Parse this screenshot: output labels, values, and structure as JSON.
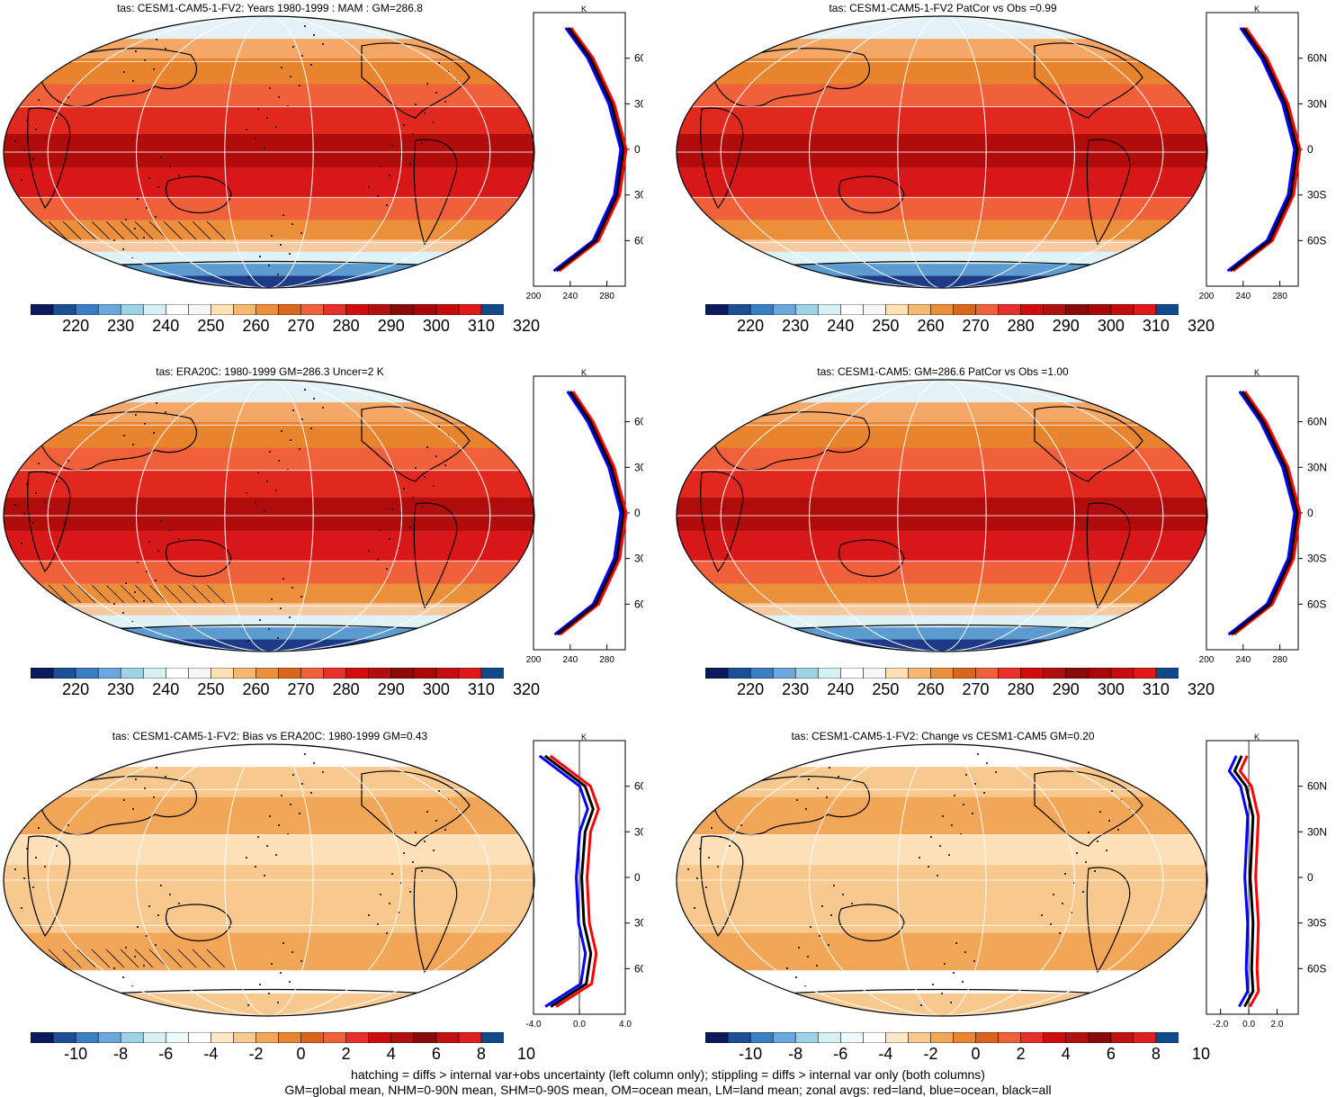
{
  "panels": [
    {
      "title": "tas: CESM1-CAM5-1-FV2: Years 1980-1999 : MAM : GM=286.8",
      "type": "abs",
      "hatch": true,
      "stipple": true
    },
    {
      "title": "tas: CESM1-CAM5-1-FV2 PatCor vs Obs =0.99",
      "type": "abs",
      "hatch": false,
      "stipple": false
    },
    {
      "title": "tas: ERA20C: 1980-1999 GM=286.3 Uncer=2 K",
      "type": "abs",
      "hatch": true,
      "stipple": true
    },
    {
      "title": "tas: CESM1-CAM5: GM=286.6 PatCor vs Obs =1.00",
      "type": "abs",
      "hatch": false,
      "stipple": false
    },
    {
      "title": "tas: CESM1-CAM5-1-FV2: Bias vs ERA20C: 1980-1999 GM=0.43",
      "type": "diff",
      "hatch": true,
      "stipple": true
    },
    {
      "title": "tas: CESM1-CAM5-1-FV2: Change vs CESM1-CAM5 GM=0.20",
      "type": "diff",
      "hatch": false,
      "stipple": true
    }
  ],
  "colorbars": {
    "abs_labels": [
      "220",
      "230",
      "240",
      "250",
      "260",
      "270",
      "280",
      "290",
      "300",
      "310",
      "320"
    ],
    "diff_labels": [
      "-10",
      "-8",
      "-6",
      "-4",
      "-2",
      "0",
      "2",
      "4",
      "6",
      "8",
      "10"
    ],
    "abs_colors": [
      "#0a1a5c",
      "#1c4f96",
      "#3a7fc4",
      "#6aa7dc",
      "#9ed2e6",
      "#d6f0f4",
      "#ffffff",
      "#f7f7f7",
      "#fde0b5",
      "#f7b76e",
      "#ec8f3a",
      "#d8661c",
      "#f0603a",
      "#e8302a",
      "#d00c0c",
      "#b01010",
      "#8a0a0a",
      "#a80808",
      "#c40c0c",
      "#e01818",
      "#104a8a"
    ],
    "diff_colors": [
      "#0a1a5c",
      "#1c4f96",
      "#3a7fc4",
      "#6aa7dc",
      "#9ed2e6",
      "#d6f0f4",
      "#eefafc",
      "#ffffff",
      "#fde9c9",
      "#f7c98e",
      "#f1a658",
      "#e9852f",
      "#d9651c",
      "#f0603a",
      "#e8302a",
      "#d00c0c",
      "#b01010",
      "#8a0a0a",
      "#c01010",
      "#e02020",
      "#104a8a"
    ]
  },
  "zonal": {
    "unit_label": "K",
    "lat_labels": [
      "60N",
      "30N",
      "0",
      "30S",
      "60S"
    ],
    "abs_x_labels": [
      "200",
      "240",
      "280"
    ],
    "diff_x_labels_left": [
      "-4.0",
      "0.0",
      "4.0"
    ],
    "diff_x_labels_right": [
      "-2.0",
      "0.0",
      "2.0"
    ],
    "legend_colors": {
      "land": "#ff0000",
      "ocean": "#0000ff",
      "all": "#000000"
    }
  },
  "chart_data": [
    {
      "type": "heatmap",
      "title": "tas: CESM1-CAM5-1-FV2: Years 1980-1999 : MAM : GM=286.8",
      "colorbar_ticks": [
        220,
        230,
        240,
        250,
        260,
        270,
        280,
        290,
        300,
        310,
        320
      ],
      "zonal_mean": {
        "lat": [
          80,
          60,
          30,
          0,
          -30,
          -60,
          -80
        ],
        "all": [
          238,
          262,
          285,
          298,
          291,
          268,
          225
        ],
        "xlim": [
          200,
          300
        ]
      }
    },
    {
      "type": "heatmap",
      "title": "tas: CESM1-CAM5-1-FV2 PatCor vs Obs =0.99",
      "colorbar_ticks": [
        220,
        230,
        240,
        250,
        260,
        270,
        280,
        290,
        300,
        310,
        320
      ],
      "zonal_mean": {
        "lat": [
          80,
          60,
          30,
          0,
          -30,
          -60,
          -80
        ],
        "all": [
          240,
          263,
          286,
          299,
          292,
          269,
          226
        ],
        "xlim": [
          200,
          300
        ]
      }
    },
    {
      "type": "heatmap",
      "title": "tas: ERA20C: 1980-1999 GM=286.3 Uncer=2 K",
      "colorbar_ticks": [
        220,
        230,
        240,
        250,
        260,
        270,
        280,
        290,
        300,
        310,
        320
      ],
      "zonal_mean": {
        "lat": [
          80,
          60,
          30,
          0,
          -30,
          -60,
          -80
        ],
        "all": [
          240,
          262,
          285,
          298,
          291,
          268,
          226
        ],
        "xlim": [
          200,
          300
        ]
      }
    },
    {
      "type": "heatmap",
      "title": "tas: CESM1-CAM5: GM=286.6 PatCor vs Obs =1.00",
      "colorbar_ticks": [
        220,
        230,
        240,
        250,
        260,
        270,
        280,
        290,
        300,
        310,
        320
      ],
      "zonal_mean": {
        "lat": [
          80,
          60,
          30,
          0,
          -30,
          -60,
          -80
        ],
        "all": [
          239,
          262,
          286,
          299,
          292,
          269,
          227
        ],
        "xlim": [
          200,
          300
        ]
      }
    },
    {
      "type": "heatmap",
      "title": "tas: CESM1-CAM5-1-FV2: Bias vs ERA20C: 1980-1999 GM=0.43",
      "colorbar_ticks": [
        -10,
        -8,
        -6,
        -4,
        -2,
        0,
        2,
        4,
        6,
        8,
        10
      ],
      "zonal_mean": {
        "lat": [
          80,
          60,
          45,
          30,
          0,
          -30,
          -50,
          -70,
          -85
        ],
        "all": [
          -3,
          0.5,
          1.2,
          0.5,
          0.2,
          0.4,
          1.0,
          0.6,
          -2.5
        ],
        "xlim": [
          -4,
          4
        ]
      }
    },
    {
      "type": "heatmap",
      "title": "tas: CESM1-CAM5-1-FV2: Change vs CESM1-CAM5 GM=0.20",
      "colorbar_ticks": [
        -10,
        -8,
        -6,
        -4,
        -2,
        0,
        2,
        4,
        6,
        8,
        10
      ],
      "zonal_mean": {
        "lat": [
          80,
          70,
          60,
          40,
          0,
          -30,
          -60,
          -75,
          -85
        ],
        "all": [
          -0.5,
          -1.0,
          -0.2,
          0.3,
          0.1,
          0.3,
          0.2,
          0.3,
          -0.3
        ],
        "xlim": [
          -3,
          3.5
        ]
      }
    }
  ],
  "footnote": {
    "line1": "hatching = diffs > internal var+obs uncertainty (left column only); stippling = diffs > internal var only (both columns)",
    "line2": "GM=global mean, NHM=0-90N mean, SHM=0-90S mean, OM=ocean mean, LM=land mean; zonal avgs: red=land, blue=ocean, black=all"
  }
}
